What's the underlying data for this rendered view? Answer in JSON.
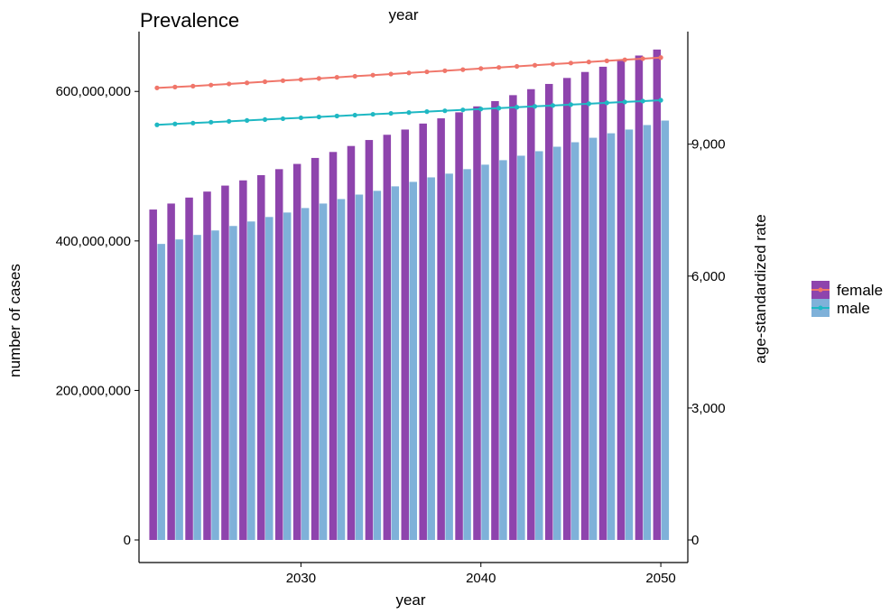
{
  "chart_data": {
    "type": "bar",
    "title": "Prevalence",
    "top_axis_label": "year",
    "xlabel": "year",
    "ylabel_left": "number of cases",
    "ylabel_right": "age-standardized rate",
    "xlim": [
      2021,
      2051.5
    ],
    "ylim_left": [
      0,
      680000000
    ],
    "ylim_right": [
      0,
      11560
    ],
    "x_ticks": [
      2030,
      2040,
      2050
    ],
    "x_tick_labels": [
      "2030",
      "2040",
      "2050"
    ],
    "y_left_ticks": [
      0,
      200000000,
      400000000,
      600000000
    ],
    "y_left_tick_labels": [
      "0",
      "200,000,000",
      "400,000,000",
      "600,000,000"
    ],
    "y_right_ticks": [
      0,
      3000,
      6000,
      9000
    ],
    "y_right_tick_labels": [
      "0",
      "3,000",
      "6,000",
      "9,000"
    ],
    "grid": false,
    "legend_position": "right",
    "x": [
      2022,
      2023,
      2024,
      2025,
      2026,
      2027,
      2028,
      2029,
      2030,
      2031,
      2032,
      2033,
      2034,
      2035,
      2036,
      2037,
      2038,
      2039,
      2040,
      2041,
      2042,
      2043,
      2044,
      2045,
      2046,
      2047,
      2048,
      2049,
      2050
    ],
    "bar_series": [
      {
        "name": "female",
        "color": "#8e44ad",
        "values": [
          442000000,
          450000000,
          458000000,
          466000000,
          474000000,
          481000000,
          488000000,
          496000000,
          503000000,
          511000000,
          519000000,
          527000000,
          535000000,
          542000000,
          549000000,
          557000000,
          564000000,
          572000000,
          580000000,
          587000000,
          595000000,
          603000000,
          610000000,
          618000000,
          626000000,
          633000000,
          641000000,
          648000000,
          656000000
        ]
      },
      {
        "name": "male",
        "color": "#7fb1d9",
        "values": [
          396000000,
          402000000,
          408000000,
          414000000,
          420000000,
          426000000,
          432000000,
          438000000,
          444000000,
          450000000,
          456000000,
          462000000,
          467000000,
          473000000,
          479000000,
          485000000,
          490000000,
          496000000,
          502000000,
          508000000,
          514000000,
          520000000,
          526000000,
          532000000,
          538000000,
          544000000,
          549000000,
          555000000,
          561000000
        ]
      }
    ],
    "line_series": [
      {
        "name": "female",
        "color": "#f0766a",
        "values": [
          10280,
          10300,
          10320,
          10345,
          10370,
          10395,
          10420,
          10445,
          10470,
          10495,
          10520,
          10545,
          10570,
          10595,
          10620,
          10645,
          10670,
          10695,
          10720,
          10745,
          10770,
          10795,
          10820,
          10845,
          10870,
          10895,
          10920,
          10945,
          10970
        ]
      },
      {
        "name": "male",
        "color": "#1fb8c3",
        "values": [
          9440,
          9460,
          9480,
          9500,
          9520,
          9540,
          9560,
          9580,
          9600,
          9620,
          9640,
          9660,
          9680,
          9700,
          9720,
          9740,
          9760,
          9780,
          9800,
          9820,
          9840,
          9860,
          9880,
          9900,
          9920,
          9940,
          9960,
          9980,
          10000
        ]
      }
    ],
    "legend": [
      {
        "label": "female",
        "bar_color": "#8e44ad",
        "line_color": "#f0766a"
      },
      {
        "label": "male",
        "bar_color": "#7fb1d9",
        "line_color": "#1fb8c3"
      }
    ]
  }
}
